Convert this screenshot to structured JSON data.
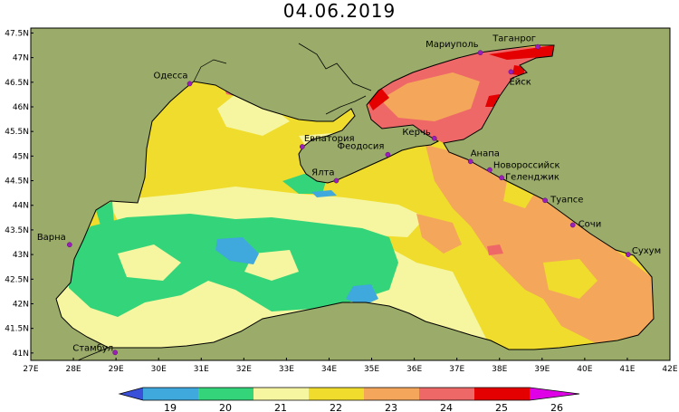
{
  "title": "04.06.2019",
  "map": {
    "lon_range": [
      27,
      42
    ],
    "lat_range": [
      40.85,
      47.6
    ],
    "land_color": "#9aab6a",
    "coast_color": "#000000",
    "lon_ticks": [
      "27E",
      "28E",
      "29E",
      "30E",
      "31E",
      "32E",
      "33E",
      "34E",
      "35E",
      "36E",
      "37E",
      "38E",
      "39E",
      "40E",
      "41E",
      "42E"
    ],
    "lat_ticks": [
      "47.5N",
      "47N",
      "46.5N",
      "46N",
      "45.5N",
      "45N",
      "44.5N",
      "44N",
      "43.5N",
      "43N",
      "42.5N",
      "42N",
      "41.5N",
      "41N"
    ],
    "cities": [
      {
        "name": "Одесса",
        "lon": 30.73,
        "lat": 46.47
      },
      {
        "name": "Мариуполь",
        "lon": 37.55,
        "lat": 47.1
      },
      {
        "name": "Таганрог",
        "lon": 38.9,
        "lat": 47.22
      },
      {
        "name": "Ейск",
        "lon": 38.27,
        "lat": 46.71
      },
      {
        "name": "Евпатория",
        "lon": 33.37,
        "lat": 45.19
      },
      {
        "name": "Феодосия",
        "lon": 35.38,
        "lat": 45.03
      },
      {
        "name": "Керчь",
        "lon": 36.47,
        "lat": 45.36
      },
      {
        "name": "Ялта",
        "lon": 34.17,
        "lat": 44.5
      },
      {
        "name": "Анапа",
        "lon": 37.32,
        "lat": 44.89
      },
      {
        "name": "Новороссийск",
        "lon": 37.77,
        "lat": 44.72
      },
      {
        "name": "Геленджик",
        "lon": 38.05,
        "lat": 44.56
      },
      {
        "name": "Туапсе",
        "lon": 39.07,
        "lat": 44.1
      },
      {
        "name": "Сочи",
        "lon": 39.72,
        "lat": 43.6
      },
      {
        "name": "Сухум",
        "lon": 41.02,
        "lat": 43.0
      },
      {
        "name": "Варна",
        "lon": 27.91,
        "lat": 43.2
      },
      {
        "name": "Стамбул",
        "lon": 28.98,
        "lat": 41.01
      }
    ]
  },
  "colorbar": {
    "labels": [
      "19",
      "20",
      "21",
      "22",
      "23",
      "24",
      "25",
      "26"
    ],
    "colors": {
      "lt19": "#3a50d8",
      "19_20": "#3fa8dc",
      "20_21": "#33d47a",
      "21_22": "#f6f6a0",
      "22_23": "#f0dc2c",
      "23_24": "#f4a75a",
      "24_25": "#ee6868",
      "25_26": "#e40000",
      "gt26": "#e000e8"
    }
  }
}
